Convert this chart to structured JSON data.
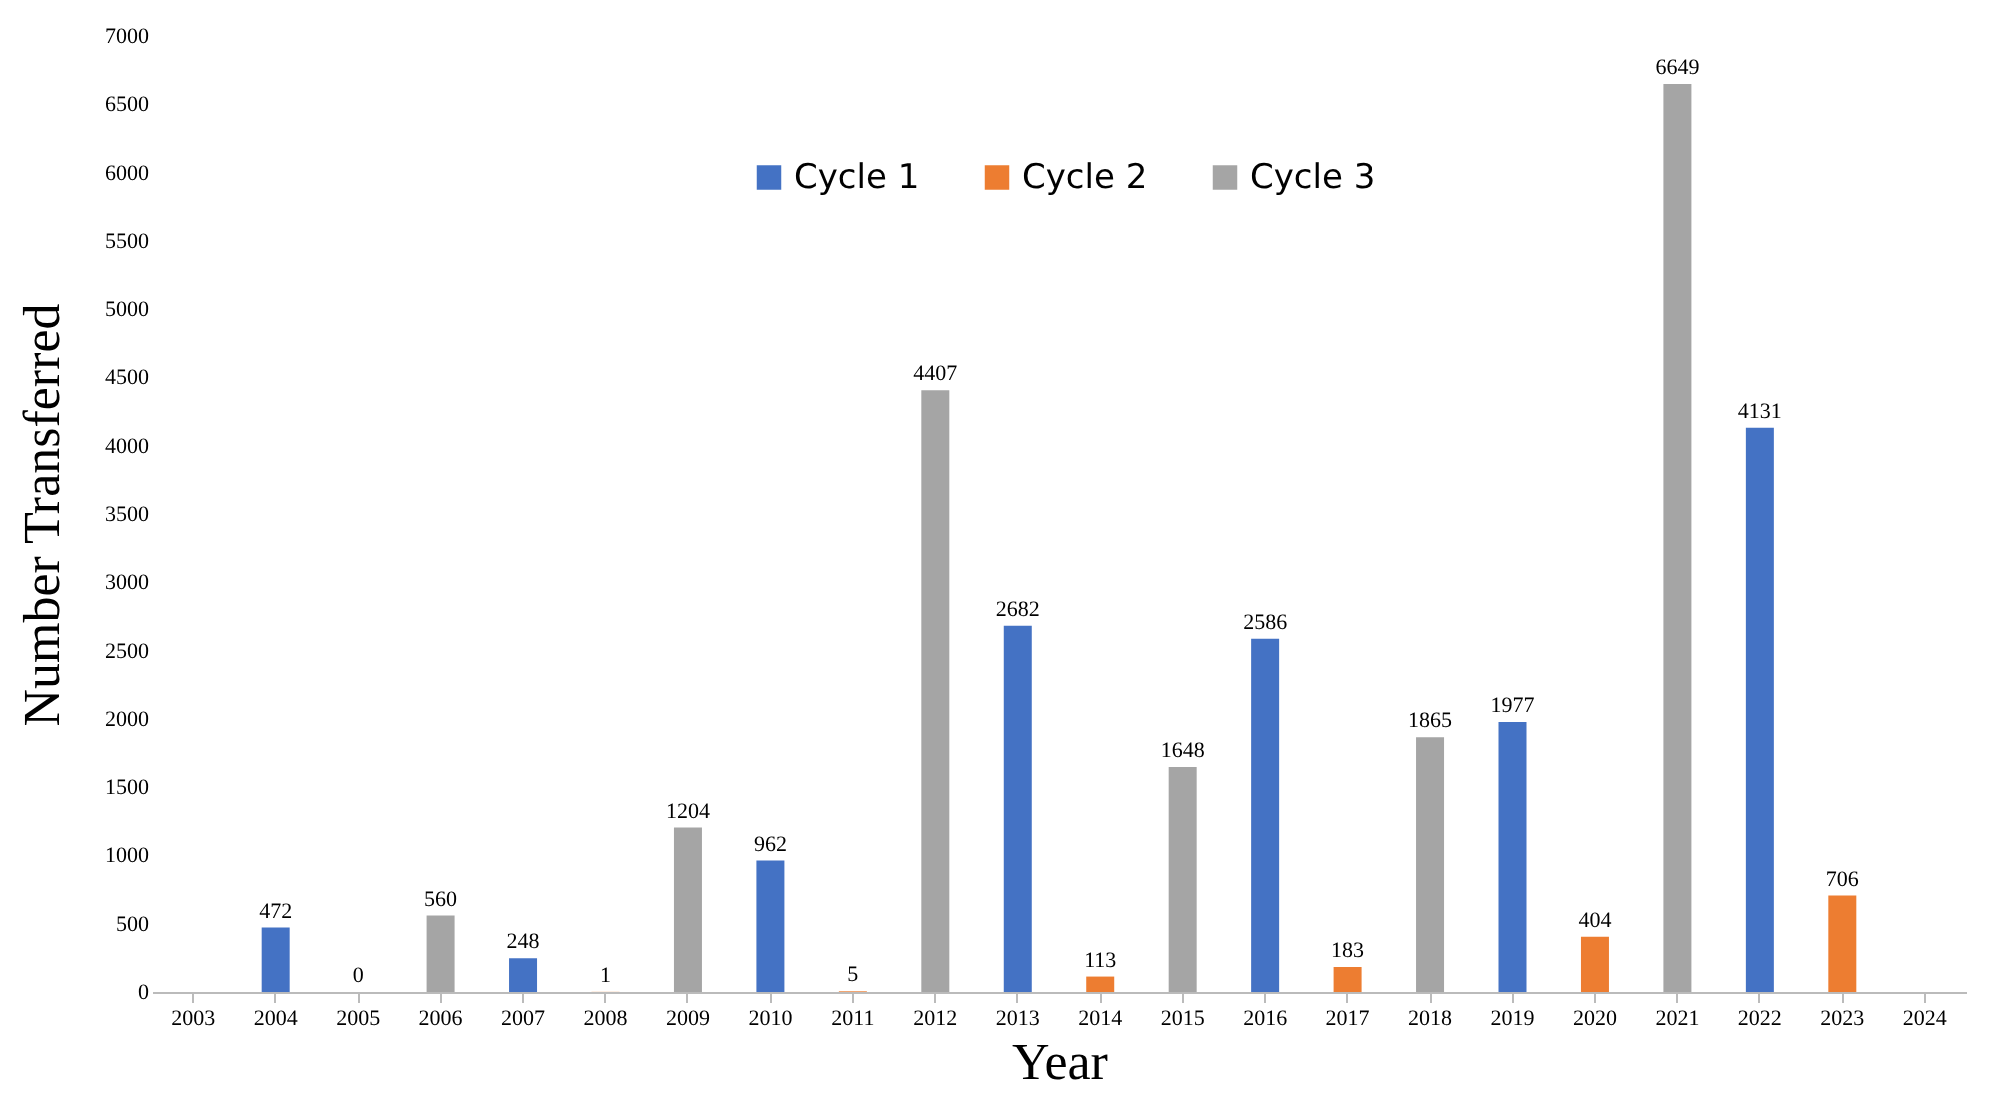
{
  "chart_data": {
    "type": "bar",
    "xlabel": "Year",
    "ylabel": "Number Transferred",
    "categories": [
      "2003",
      "2004",
      "2005",
      "2006",
      "2007",
      "2008",
      "2009",
      "2010",
      "2011",
      "2012",
      "2013",
      "2014",
      "2015",
      "2016",
      "2017",
      "2018",
      "2019",
      "2020",
      "2021",
      "2022",
      "2023",
      "2024"
    ],
    "series": [
      {
        "name": "Cycle 1",
        "color": "#4472c4",
        "values": [
          null,
          472,
          null,
          null,
          248,
          null,
          null,
          962,
          null,
          null,
          2682,
          null,
          null,
          2586,
          null,
          null,
          1977,
          null,
          null,
          4131,
          null,
          null
        ]
      },
      {
        "name": "Cycle 2",
        "color": "#ed7d31",
        "values": [
          null,
          null,
          0,
          null,
          null,
          1,
          null,
          null,
          5,
          null,
          null,
          113,
          null,
          null,
          183,
          null,
          null,
          404,
          null,
          null,
          706,
          null
        ]
      },
      {
        "name": "Cycle 3",
        "color": "#a5a5a5",
        "values": [
          null,
          null,
          null,
          560,
          null,
          null,
          1204,
          null,
          null,
          4407,
          null,
          null,
          1648,
          null,
          null,
          1865,
          null,
          null,
          6649,
          null,
          null,
          null
        ]
      }
    ],
    "ylim": [
      0,
      7000
    ],
    "yticks": [
      0,
      500,
      1000,
      1500,
      2000,
      2500,
      3000,
      3500,
      4000,
      4500,
      5000,
      5500,
      6000,
      6500,
      7000
    ],
    "data_labels": true,
    "legend": "top",
    "grid": false
  }
}
